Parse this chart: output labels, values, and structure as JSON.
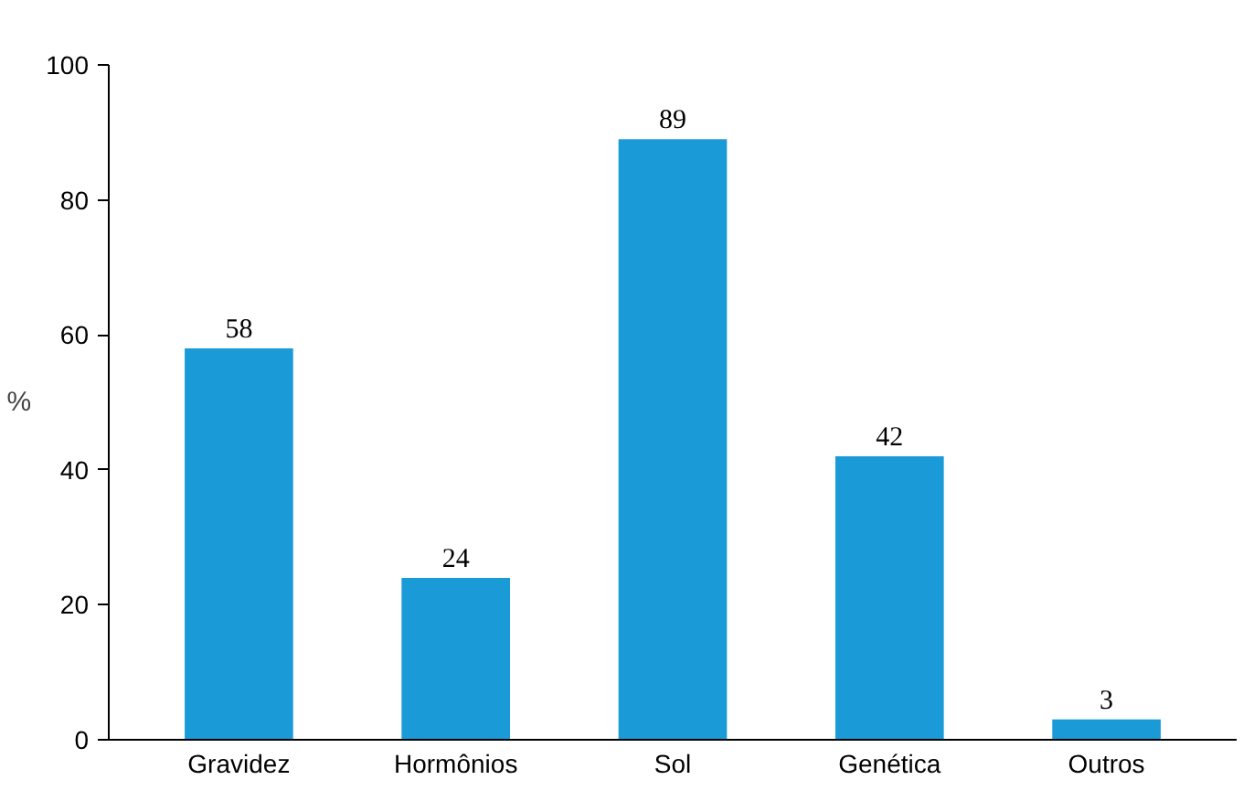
{
  "chart_data": {
    "type": "bar",
    "ylabel": "%",
    "categories": [
      "Gravidez",
      "Hormônios",
      "Sol",
      "Genética",
      "Outros"
    ],
    "values": [
      58,
      24,
      89,
      42,
      3
    ],
    "color": "#1a9bd7",
    "ylim": [
      0,
      100
    ],
    "yticks": [
      0,
      20,
      40,
      60,
      80,
      100
    ],
    "grid": false,
    "data_labels": true
  }
}
